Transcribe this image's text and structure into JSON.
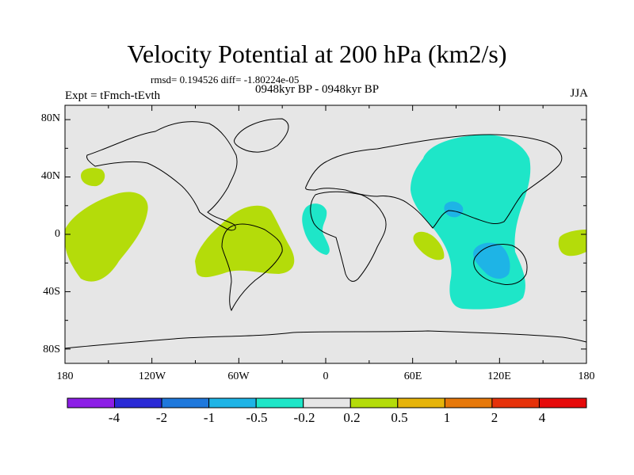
{
  "title": "Velocity Potential at 200 hPa (km2/s)",
  "stats_line": "rmsd= 0.194526  diff= -1.80224e-05",
  "experiment": "Expt = tFmch-tEvth",
  "period": "0948kyr BP - 0948kyr BP",
  "season": "JJA",
  "lat_labels": [
    "80N",
    "40N",
    "0",
    "40S",
    "80S"
  ],
  "lon_labels": [
    "180",
    "120W",
    "60W",
    "0",
    "60E",
    "120E",
    "180"
  ],
  "colorbar": {
    "colors": [
      "#8c1ee6",
      "#2a2ad6",
      "#1e78dc",
      "#1eb4e6",
      "#1ee6c8",
      "#e6e6e6",
      "#b4dc0a",
      "#e6b40a",
      "#e6780a",
      "#e6320a",
      "#e60a0a"
    ],
    "labels": [
      "-4",
      "-2",
      "-1",
      "-0.5",
      "-0.2",
      "0.2",
      "0.5",
      "1",
      "2",
      "4"
    ]
  },
  "map_background": "#e6e6e6"
}
